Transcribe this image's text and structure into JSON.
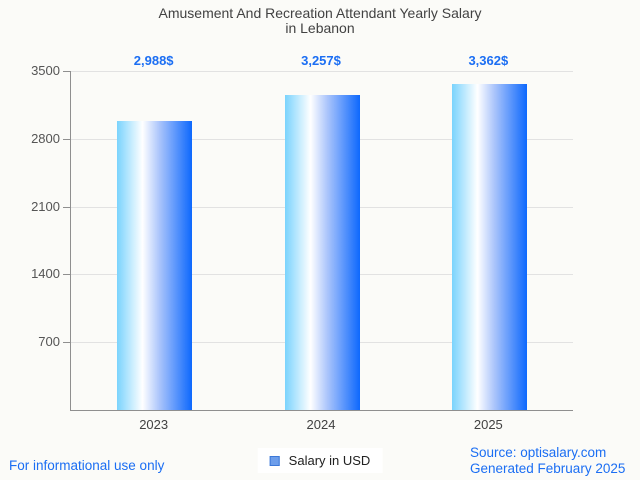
{
  "title": {
    "line1": "Amusement And Recreation Attendant Yearly Salary",
    "line2": "in Lebanon"
  },
  "chart_data": {
    "type": "bar",
    "title": "Amusement And Recreation Attendant Yearly Salary in Lebanon",
    "categories": [
      "2023",
      "2024",
      "2025"
    ],
    "values": [
      2988,
      3257,
      3362
    ],
    "value_labels": [
      "2,988$",
      "3,257$",
      "3,362$"
    ],
    "xlabel": "",
    "ylabel": "",
    "ylim": [
      0,
      3500
    ],
    "yticks": [
      700,
      1400,
      2100,
      2800,
      3500
    ],
    "grid": true,
    "legend_position": "bottom-center",
    "bar_gradient": [
      "#7ad3fd",
      "#ffffff",
      "#0d68fd"
    ],
    "value_label_color": "#1b6ef3",
    "title_color": "#424242",
    "axis_color": "#8f8f8f",
    "gridline_color": "#e2e2e2",
    "background_color": "#fbfbf8"
  },
  "legend": {
    "label": "Salary in USD",
    "swatch_fill": "#6d9eeb",
    "swatch_border": "#3c78d8"
  },
  "footer": {
    "disclaimer": "For informational use only",
    "source": "Source: optisalary.com",
    "generated": "Generated February 2025"
  }
}
